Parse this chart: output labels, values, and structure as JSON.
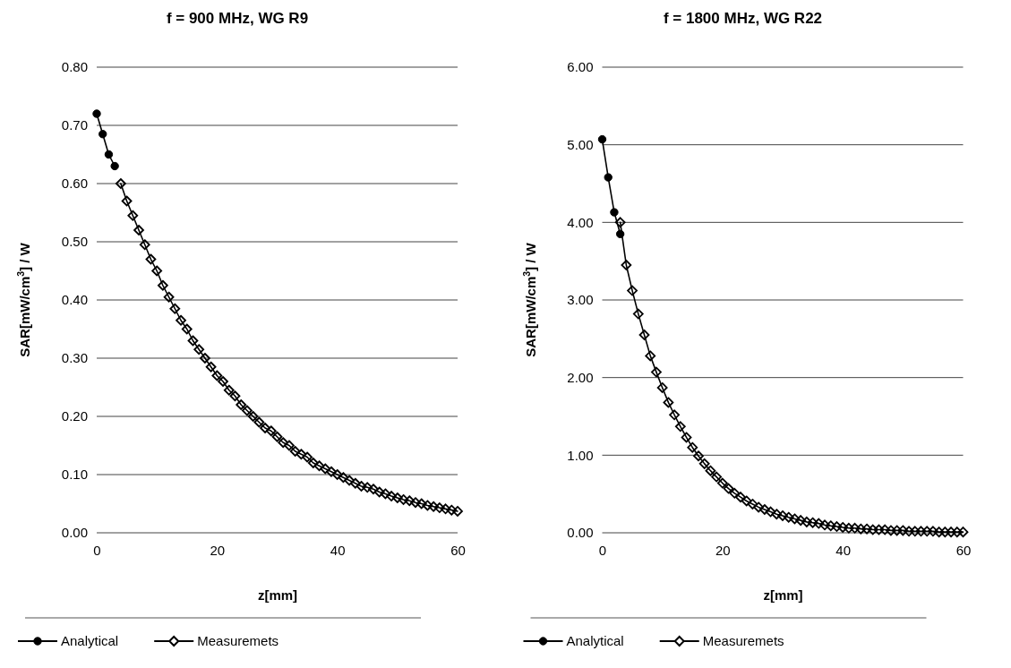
{
  "chart_data": [
    {
      "type": "line",
      "title": "f = 900 MHz, WG R9",
      "xlabel": "z[mm]",
      "ylabel": "SAR[mW/cm$^{3}$] / W",
      "xlim": [
        0,
        60
      ],
      "xticks": [
        0,
        20,
        40,
        60
      ],
      "ylim": [
        0,
        0.8
      ],
      "yticks": [
        {
          "value": 0,
          "label": "0.00"
        },
        {
          "value": 0.1,
          "label": "0.10"
        },
        {
          "value": 0.2,
          "label": "0.20"
        },
        {
          "value": 0.3,
          "label": "0.30"
        },
        {
          "value": 0.4,
          "label": "0.40"
        },
        {
          "value": 0.5,
          "label": "0.50"
        },
        {
          "value": 0.6,
          "label": "0.60"
        },
        {
          "value": 0.7,
          "label": "0.70"
        },
        {
          "value": 0.8,
          "label": "0.80"
        }
      ],
      "grid": "y",
      "legend": "bottom",
      "series": [
        {
          "name": "Analytical",
          "color": "#000000",
          "marker": "circle",
          "x": [
            0,
            1,
            2,
            3
          ],
          "values": [
            0.72,
            0.685,
            0.65,
            0.63
          ]
        },
        {
          "name": "Measuremets",
          "color": "#000000",
          "marker": "diamond",
          "x": [
            4,
            5,
            6,
            7,
            8,
            9,
            10,
            11,
            12,
            13,
            14,
            15,
            16,
            17,
            18,
            19,
            20,
            21,
            22,
            23,
            24,
            25,
            26,
            27,
            28,
            29,
            30,
            31,
            32,
            33,
            34,
            35,
            36,
            37,
            38,
            39,
            40,
            41,
            42,
            43,
            44,
            45,
            46,
            47,
            48,
            49,
            50,
            51,
            52,
            53,
            54,
            55,
            56,
            57,
            58,
            59,
            60
          ],
          "values": [
            0.6,
            0.57,
            0.545,
            0.52,
            0.495,
            0.47,
            0.45,
            0.425,
            0.405,
            0.385,
            0.365,
            0.35,
            0.33,
            0.315,
            0.3,
            0.285,
            0.27,
            0.26,
            0.245,
            0.235,
            0.22,
            0.21,
            0.2,
            0.19,
            0.18,
            0.175,
            0.165,
            0.155,
            0.15,
            0.14,
            0.135,
            0.13,
            0.12,
            0.115,
            0.11,
            0.105,
            0.1,
            0.095,
            0.09,
            0.085,
            0.08,
            0.078,
            0.075,
            0.07,
            0.067,
            0.063,
            0.06,
            0.057,
            0.055,
            0.052,
            0.05,
            0.047,
            0.045,
            0.043,
            0.041,
            0.039,
            0.037
          ]
        }
      ]
    },
    {
      "type": "line",
      "title": "f = 1800 MHz, WG R22",
      "xlabel": "z[mm]",
      "ylabel": "SAR[mW/cm$^{3}$] / W",
      "xlim": [
        0,
        60
      ],
      "xticks": [
        0,
        20,
        40,
        60
      ],
      "ylim": [
        0,
        6
      ],
      "yticks": [
        {
          "value": 0,
          "label": "0.00"
        },
        {
          "value": 1,
          "label": "1.00"
        },
        {
          "value": 2,
          "label": "2.00"
        },
        {
          "value": 3,
          "label": "3.00"
        },
        {
          "value": 4,
          "label": "4.00"
        },
        {
          "value": 5,
          "label": "5.00"
        },
        {
          "value": 6,
          "label": "6.00"
        }
      ],
      "grid": "y",
      "legend": "bottom",
      "series": [
        {
          "name": "Analytical",
          "color": "#000000",
          "marker": "circle",
          "x": [
            0,
            1,
            2,
            3
          ],
          "values": [
            5.07,
            4.58,
            4.13,
            3.85
          ]
        },
        {
          "name": "Measuremets",
          "color": "#000000",
          "marker": "diamond",
          "x": [
            3,
            4,
            5,
            6,
            7,
            8,
            9,
            10,
            11,
            12,
            13,
            14,
            15,
            16,
            17,
            18,
            19,
            20,
            21,
            22,
            23,
            24,
            25,
            26,
            27,
            28,
            29,
            30,
            31,
            32,
            33,
            34,
            35,
            36,
            37,
            38,
            39,
            40,
            41,
            42,
            43,
            44,
            45,
            46,
            47,
            48,
            49,
            50,
            51,
            52,
            53,
            54,
            55,
            56,
            57,
            58,
            59,
            60
          ],
          "values": [
            4.0,
            3.45,
            3.12,
            2.82,
            2.55,
            2.28,
            2.07,
            1.87,
            1.68,
            1.52,
            1.37,
            1.23,
            1.1,
            0.99,
            0.89,
            0.8,
            0.72,
            0.64,
            0.57,
            0.51,
            0.46,
            0.41,
            0.37,
            0.33,
            0.3,
            0.27,
            0.24,
            0.22,
            0.2,
            0.18,
            0.16,
            0.14,
            0.13,
            0.12,
            0.1,
            0.09,
            0.08,
            0.07,
            0.06,
            0.06,
            0.05,
            0.05,
            0.04,
            0.04,
            0.04,
            0.03,
            0.03,
            0.03,
            0.02,
            0.02,
            0.02,
            0.02,
            0.02,
            0.01,
            0.01,
            0.01,
            0.01,
            0.01
          ]
        }
      ]
    }
  ]
}
